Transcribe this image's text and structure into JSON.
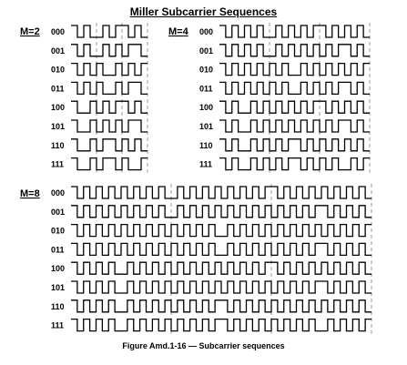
{
  "title": "Miller Subcarrier Sequences",
  "caption": "Figure Amd.1-16 — Subcarrier sequences",
  "groups": [
    {
      "label": "M=2",
      "m": 2,
      "symbols": 3,
      "rows": [
        {
          "bits": "000"
        },
        {
          "bits": "001"
        },
        {
          "bits": "010"
        },
        {
          "bits": "011"
        },
        {
          "bits": "100"
        },
        {
          "bits": "101"
        },
        {
          "bits": "110"
        },
        {
          "bits": "111"
        }
      ]
    },
    {
      "label": "M=4",
      "m": 4,
      "symbols": 3,
      "rows": [
        {
          "bits": "000"
        },
        {
          "bits": "001"
        },
        {
          "bits": "010"
        },
        {
          "bits": "011"
        },
        {
          "bits": "100"
        },
        {
          "bits": "101"
        },
        {
          "bits": "110"
        },
        {
          "bits": "111"
        }
      ]
    },
    {
      "label": "M=8",
      "m": 8,
      "symbols": 3,
      "rows": [
        {
          "bits": "000"
        },
        {
          "bits": "001"
        },
        {
          "bits": "010"
        },
        {
          "bits": "011"
        },
        {
          "bits": "100"
        },
        {
          "bits": "101"
        },
        {
          "bits": "110"
        },
        {
          "bits": "111"
        }
      ]
    }
  ]
}
